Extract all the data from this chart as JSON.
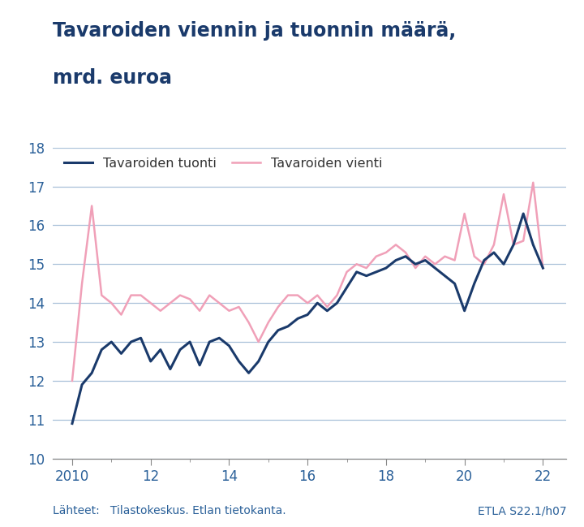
{
  "title_line1": "Tavaroiden viennin ja tuonnin määrä,",
  "title_line2": "mrd. euroa",
  "title_color": "#1a3a6b",
  "background_color": "#ffffff",
  "source_text": "Lähteet:   Tilastokeskus. Etlan tietokanta.",
  "source_right": "ETLA S22.1/h07",
  "source_color": "#2a6099",
  "legend_tuonti": "Tavaroiden tuonti",
  "legend_vienti": "Tavaroiden vienti",
  "tuonti_color": "#1a3a6b",
  "vienti_color": "#f0a0b8",
  "grid_color": "#a8c0d8",
  "ylim": [
    10,
    18
  ],
  "yticks": [
    10,
    11,
    12,
    13,
    14,
    15,
    16,
    17,
    18
  ],
  "xtick_positions": [
    2010,
    2012,
    2014,
    2016,
    2018,
    2020,
    2022
  ],
  "xtick_labels": [
    "2010",
    "12",
    "14",
    "16",
    "18",
    "20",
    "22"
  ],
  "xlim": [
    2009.5,
    2022.6
  ],
  "tuonti": [
    10.9,
    11.9,
    12.2,
    12.8,
    13.0,
    12.7,
    13.0,
    13.1,
    12.5,
    12.8,
    12.3,
    12.8,
    13.0,
    12.4,
    13.0,
    13.1,
    12.9,
    12.5,
    12.2,
    12.5,
    13.0,
    13.3,
    13.4,
    13.6,
    13.7,
    14.0,
    13.8,
    14.0,
    14.4,
    14.8,
    14.7,
    14.8,
    14.9,
    15.1,
    15.2,
    15.0,
    15.1,
    14.9,
    14.7,
    14.5,
    13.8,
    14.5,
    15.1,
    15.3,
    15.0,
    15.5,
    16.3,
    15.5,
    14.9
  ],
  "vienti": [
    12.0,
    14.5,
    16.5,
    14.2,
    14.0,
    13.7,
    14.2,
    14.2,
    14.0,
    13.8,
    14.0,
    14.2,
    14.1,
    13.8,
    14.2,
    14.0,
    13.8,
    13.9,
    13.5,
    13.0,
    13.5,
    13.9,
    14.2,
    14.2,
    14.0,
    14.2,
    13.9,
    14.2,
    14.8,
    15.0,
    14.9,
    15.2,
    15.3,
    15.5,
    15.3,
    14.9,
    15.2,
    15.0,
    15.2,
    15.1,
    16.3,
    15.2,
    15.0,
    15.5,
    16.8,
    15.5,
    15.6,
    17.1,
    14.9
  ]
}
